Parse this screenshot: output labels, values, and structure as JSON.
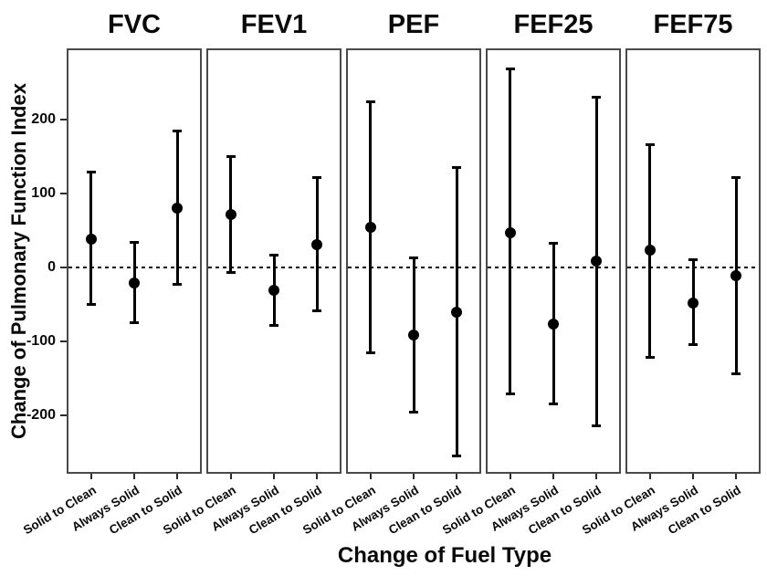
{
  "chart_data": {
    "type": "scatter",
    "subtype": "point-range-forest-plot",
    "title": "",
    "xlabel": "Change of Fuel Type",
    "ylabel": "Change of Pulmonary Function Index",
    "panels": [
      "FVC",
      "FEV1",
      "PEF",
      "FEF25",
      "FEF75"
    ],
    "categories": [
      "Solid to Clean",
      "Always Solid",
      "Clean to Solid"
    ],
    "series": [
      {
        "panel": "FVC",
        "estimates": [
          38,
          -21,
          80
        ],
        "ci_low": [
          -51,
          -75,
          -23
        ],
        "ci_high": [
          130,
          35,
          185
        ]
      },
      {
        "panel": "FEV1",
        "estimates": [
          72,
          -31,
          31
        ],
        "ci_low": [
          -8,
          -79,
          -59
        ],
        "ci_high": [
          150,
          17,
          122
        ]
      },
      {
        "panel": "PEF",
        "estimates": [
          54,
          -92,
          -60
        ],
        "ci_low": [
          -116,
          -196,
          -255
        ],
        "ci_high": [
          225,
          13,
          136
        ]
      },
      {
        "panel": "FEF25",
        "estimates": [
          47,
          -77,
          8
        ],
        "ci_low": [
          -172,
          -185,
          -215
        ],
        "ci_high": [
          269,
          33,
          231
        ]
      },
      {
        "panel": "FEF75",
        "estimates": [
          23,
          -48,
          -11
        ],
        "ci_low": [
          -122,
          -105,
          -144
        ],
        "ci_high": [
          166,
          11,
          122
        ]
      }
    ],
    "yticks": [
      -200,
      -100,
      0,
      100,
      200
    ],
    "ylim": [
      -279,
      296
    ],
    "reference_line": 0,
    "grid": "off",
    "legend": "none",
    "colors": {
      "marks": "#000000",
      "panel_border": "#4a4a4a",
      "tick": "#2b2b2b",
      "text": "#0a0a0a",
      "background": "#ffffff"
    }
  }
}
